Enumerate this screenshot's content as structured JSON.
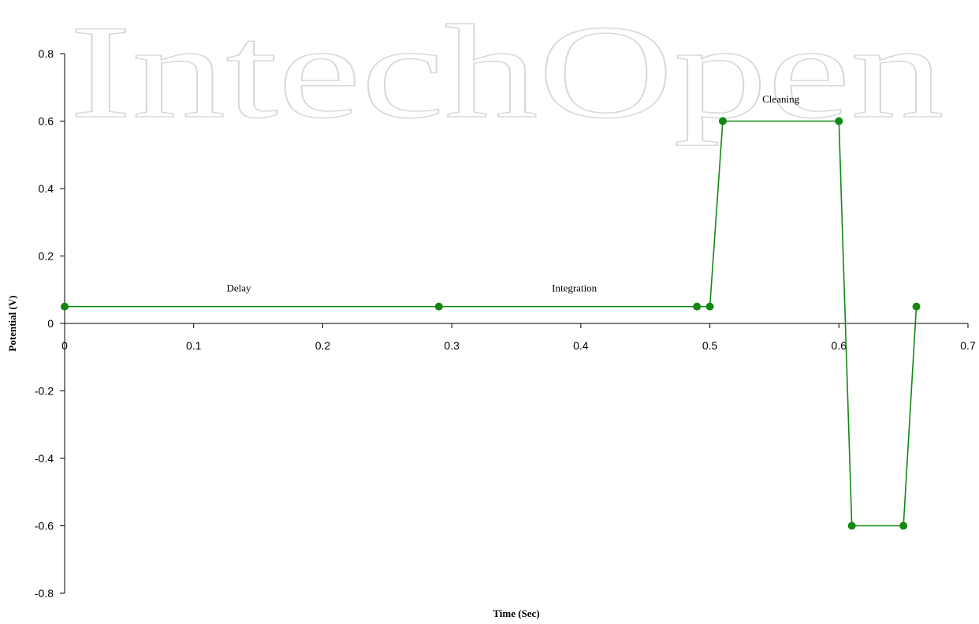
{
  "watermark": "IntechOpen",
  "chart_data": {
    "type": "line",
    "x_label": "Time (Sec)",
    "y_label": "Potential (V)",
    "annotations": [
      "Delay",
      "Integration",
      "Cleaning"
    ],
    "x": [
      0,
      0.29,
      0.49,
      0.5,
      0.51,
      0.6,
      0.61,
      0.65,
      0.66
    ],
    "series": [
      {
        "color": "#118811",
        "values": [
          0.05,
          0.05,
          0.05,
          0.05,
          0.6,
          0.6,
          -0.6,
          -0.6,
          0.05
        ]
      }
    ],
    "xlim": [
      0,
      0.7
    ],
    "xticks": [
      0,
      0.1,
      0.2,
      0.3,
      0.4,
      0.5,
      0.6,
      0.7
    ],
    "ylim": [
      -0.8,
      0.8
    ],
    "yticks": [
      -0.8,
      -0.6,
      -0.4,
      -0.2,
      0,
      0.2,
      0.4,
      0.6,
      0.8
    ],
    "grid": false
  }
}
